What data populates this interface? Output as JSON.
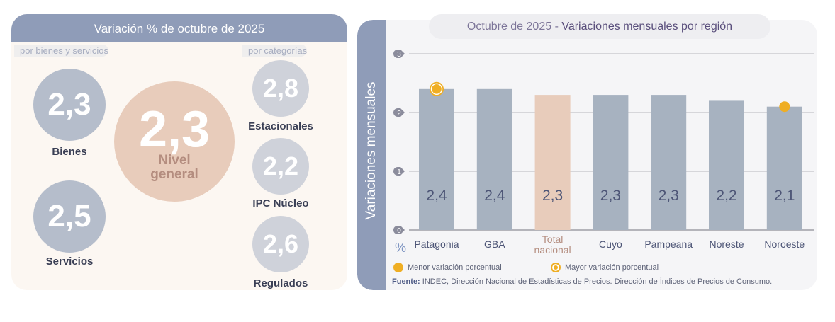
{
  "left_panel": {
    "title": "Variación % de octubre de 2025",
    "left_section_label": "por bienes y servicios",
    "right_section_label": "por categorías",
    "goods": [
      {
        "value": "2,3",
        "label": "Bienes"
      },
      {
        "value": "2,5",
        "label": "Servicios"
      }
    ],
    "main": {
      "value": "2,3",
      "label_line1": "Nivel",
      "label_line2": "general"
    },
    "categories": [
      {
        "value": "2,8",
        "label": "Estacionales"
      },
      {
        "value": "2,2",
        "label": "IPC Núcleo"
      },
      {
        "value": "2,6",
        "label": "Regulados"
      }
    ]
  },
  "right_panel": {
    "title_prefix": "Octubre de 2025 - ",
    "title_main": "Variaciones mensuales por región",
    "y_axis_title": "Variaciones mensuales",
    "unit_label": "%",
    "legend": [
      {
        "marker": "filled-dot",
        "label": "Menor variación porcentual"
      },
      {
        "marker": "ring-dot",
        "label": "Mayor variación porcentual"
      }
    ],
    "source_label": "Fuente:",
    "source_text": " INDEC, Dirección Nacional de Estadísticas de Precios. Dirección de Índices de Precios de Consumo."
  },
  "colors": {
    "bar_region": "#a7b2c0",
    "bar_total": "#e8ccbb",
    "highlight": "#efae24",
    "header": "#8f9cb8"
  },
  "chart_data": {
    "type": "bar",
    "title": "Octubre de 2025 - Variaciones mensuales por región",
    "xlabel": "",
    "ylabel": "Variaciones mensuales (%)",
    "ylim": [
      0,
      3
    ],
    "yticks": [
      0,
      1,
      2,
      3
    ],
    "grid": true,
    "categories": [
      "Patagonia",
      "GBA",
      "Total nacional",
      "Cuyo",
      "Pampeana",
      "Noreste",
      "Noroeste"
    ],
    "category_lines": [
      [
        "Patagonia"
      ],
      [
        "GBA"
      ],
      [
        "Total",
        "nacional"
      ],
      [
        "Cuyo"
      ],
      [
        "Pampeana"
      ],
      [
        "Noreste"
      ],
      [
        "Noroeste"
      ]
    ],
    "values": [
      2.4,
      2.4,
      2.3,
      2.3,
      2.3,
      2.2,
      2.1
    ],
    "value_labels": [
      "2,4",
      "2,4",
      "2,3",
      "2,3",
      "2,3",
      "2,2",
      "2,1"
    ],
    "highlight_category": "Total nacional",
    "max_marker": "Patagonia",
    "min_marker": "Noroeste",
    "legend_position": "bottom-left"
  }
}
